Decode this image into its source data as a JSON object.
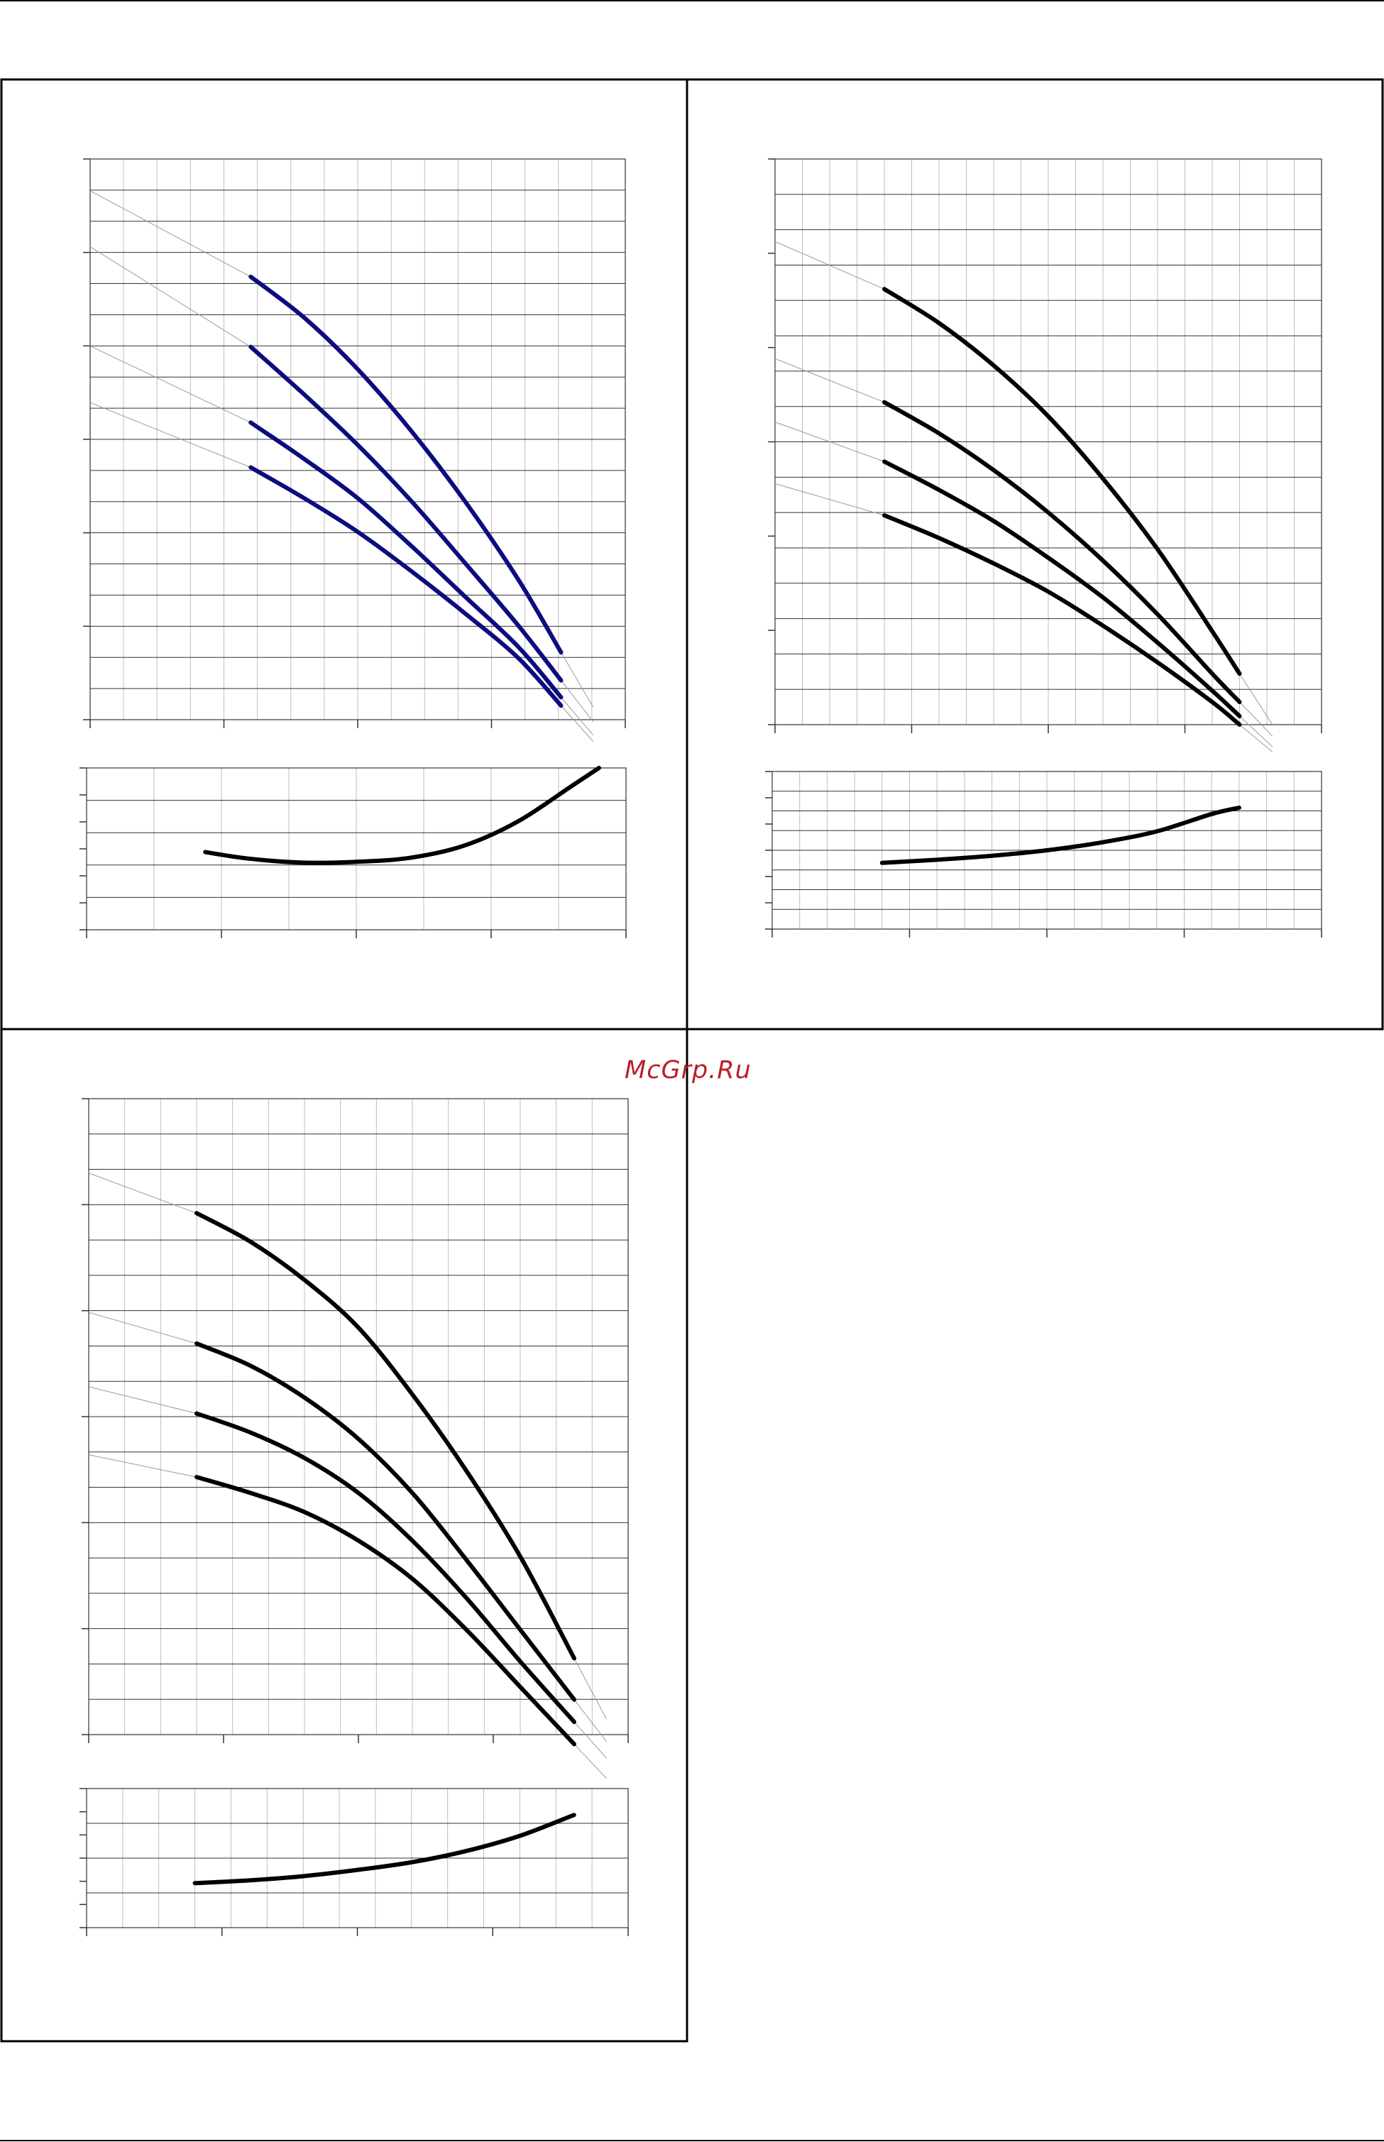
{
  "watermark": "McGrp.Ru",
  "colors": {
    "frame": "#000000",
    "minor_grid": "#bdbdbd",
    "major_grid": "#333333",
    "curve_blue": "#0c0c7f",
    "curve_black": "#000000",
    "guide": "#9a9a9a",
    "watermark": "#b8202a"
  },
  "chart_data": [
    {
      "id": "chart-a-head",
      "type": "line",
      "title": "",
      "xlabel": "",
      "ylabel": "",
      "xlim": [
        0,
        100
      ],
      "ylim": [
        0,
        100
      ],
      "grid": true,
      "series": [
        {
          "x": [
            30,
            40,
            50,
            60,
            70,
            80,
            88
          ],
          "y": [
            79,
            71.7,
            62.5,
            51.5,
            39,
            25,
            12
          ]
        },
        {
          "x": [
            30,
            40,
            50,
            60,
            70,
            80,
            88
          ],
          "y": [
            66.5,
            58,
            49,
            39,
            28,
            16.8,
            7
          ]
        },
        {
          "x": [
            30,
            40,
            50,
            60,
            70,
            80,
            88
          ],
          "y": [
            53,
            46.5,
            39.5,
            31,
            22,
            13,
            4
          ]
        },
        {
          "x": [
            30,
            40,
            50,
            60,
            70,
            80,
            88
          ],
          "y": [
            45,
            39.5,
            33.5,
            26.5,
            19,
            11,
            2.5
          ]
        }
      ]
    },
    {
      "id": "chart-a-power",
      "type": "line",
      "title": "",
      "xlabel": "",
      "ylabel": "",
      "xlim": [
        0,
        100
      ],
      "ylim": [
        0,
        100
      ],
      "grid": true,
      "series": [
        {
          "x": [
            22,
            30,
            40,
            50,
            60,
            70,
            80,
            90,
            95
          ],
          "y": [
            48,
            44,
            41.5,
            42,
            44.5,
            52,
            67,
            89,
            100
          ]
        }
      ]
    },
    {
      "id": "chart-b-head",
      "type": "line",
      "title": "",
      "xlabel": "",
      "ylabel": "",
      "xlim": [
        0,
        100
      ],
      "ylim": [
        0,
        100
      ],
      "grid": true,
      "series": [
        {
          "x": [
            20,
            30,
            40,
            50,
            60,
            70,
            80,
            85
          ],
          "y": [
            77,
            71,
            63.5,
            54.5,
            43.5,
            31,
            16.5,
            9
          ]
        },
        {
          "x": [
            20,
            30,
            40,
            50,
            60,
            70,
            80,
            85
          ],
          "y": [
            57,
            51.5,
            45,
            37.5,
            29,
            19.5,
            9,
            4
          ]
        },
        {
          "x": [
            20,
            30,
            40,
            50,
            60,
            70,
            80,
            85
          ],
          "y": [
            46.5,
            41.5,
            36,
            29.5,
            22.5,
            14.5,
            6,
            1.5
          ]
        },
        {
          "x": [
            20,
            30,
            40,
            50,
            60,
            70,
            80,
            85
          ],
          "y": [
            37,
            33,
            28.5,
            23.5,
            17.5,
            11,
            4,
            0
          ]
        }
      ]
    },
    {
      "id": "chart-b-power",
      "type": "line",
      "title": "",
      "xlabel": "",
      "ylabel": "",
      "xlim": [
        0,
        100
      ],
      "ylim": [
        0,
        100
      ],
      "grid": true,
      "series": [
        {
          "x": [
            20,
            30,
            40,
            50,
            60,
            70,
            80,
            85
          ],
          "y": [
            42,
            44,
            46.5,
            50,
            55,
            62,
            73,
            77
          ]
        }
      ]
    },
    {
      "id": "chart-c-head",
      "type": "line",
      "title": "",
      "xlabel": "",
      "ylabel": "",
      "xlim": [
        0,
        100
      ],
      "ylim": [
        0,
        100
      ],
      "grid": true,
      "series": [
        {
          "x": [
            20,
            30,
            40,
            50,
            60,
            70,
            80,
            90
          ],
          "y": [
            82,
            77.5,
            71.5,
            64,
            53.5,
            41.5,
            28,
            12
          ]
        },
        {
          "x": [
            20,
            30,
            40,
            50,
            60,
            70,
            80,
            90
          ],
          "y": [
            61.5,
            58,
            53,
            46.5,
            38,
            27.5,
            16.5,
            5.5
          ]
        },
        {
          "x": [
            20,
            30,
            40,
            50,
            60,
            70,
            80,
            90
          ],
          "y": [
            50.5,
            47.5,
            43.5,
            38,
            30.5,
            21.5,
            11.5,
            2
          ]
        },
        {
          "x": [
            20,
            30,
            40,
            50,
            60,
            70,
            80,
            90
          ],
          "y": [
            40.5,
            38,
            35,
            30.5,
            24.5,
            16.5,
            7.5,
            -1.5
          ]
        }
      ]
    },
    {
      "id": "chart-c-power",
      "type": "line",
      "title": "",
      "xlabel": "",
      "ylabel": "",
      "xlim": [
        0,
        100
      ],
      "ylim": [
        0,
        100
      ],
      "grid": true,
      "series": [
        {
          "x": [
            20,
            30,
            40,
            50,
            60,
            70,
            80,
            90
          ],
          "y": [
            32,
            34,
            37,
            41.5,
            47,
            55,
            66,
            81
          ]
        }
      ]
    }
  ]
}
